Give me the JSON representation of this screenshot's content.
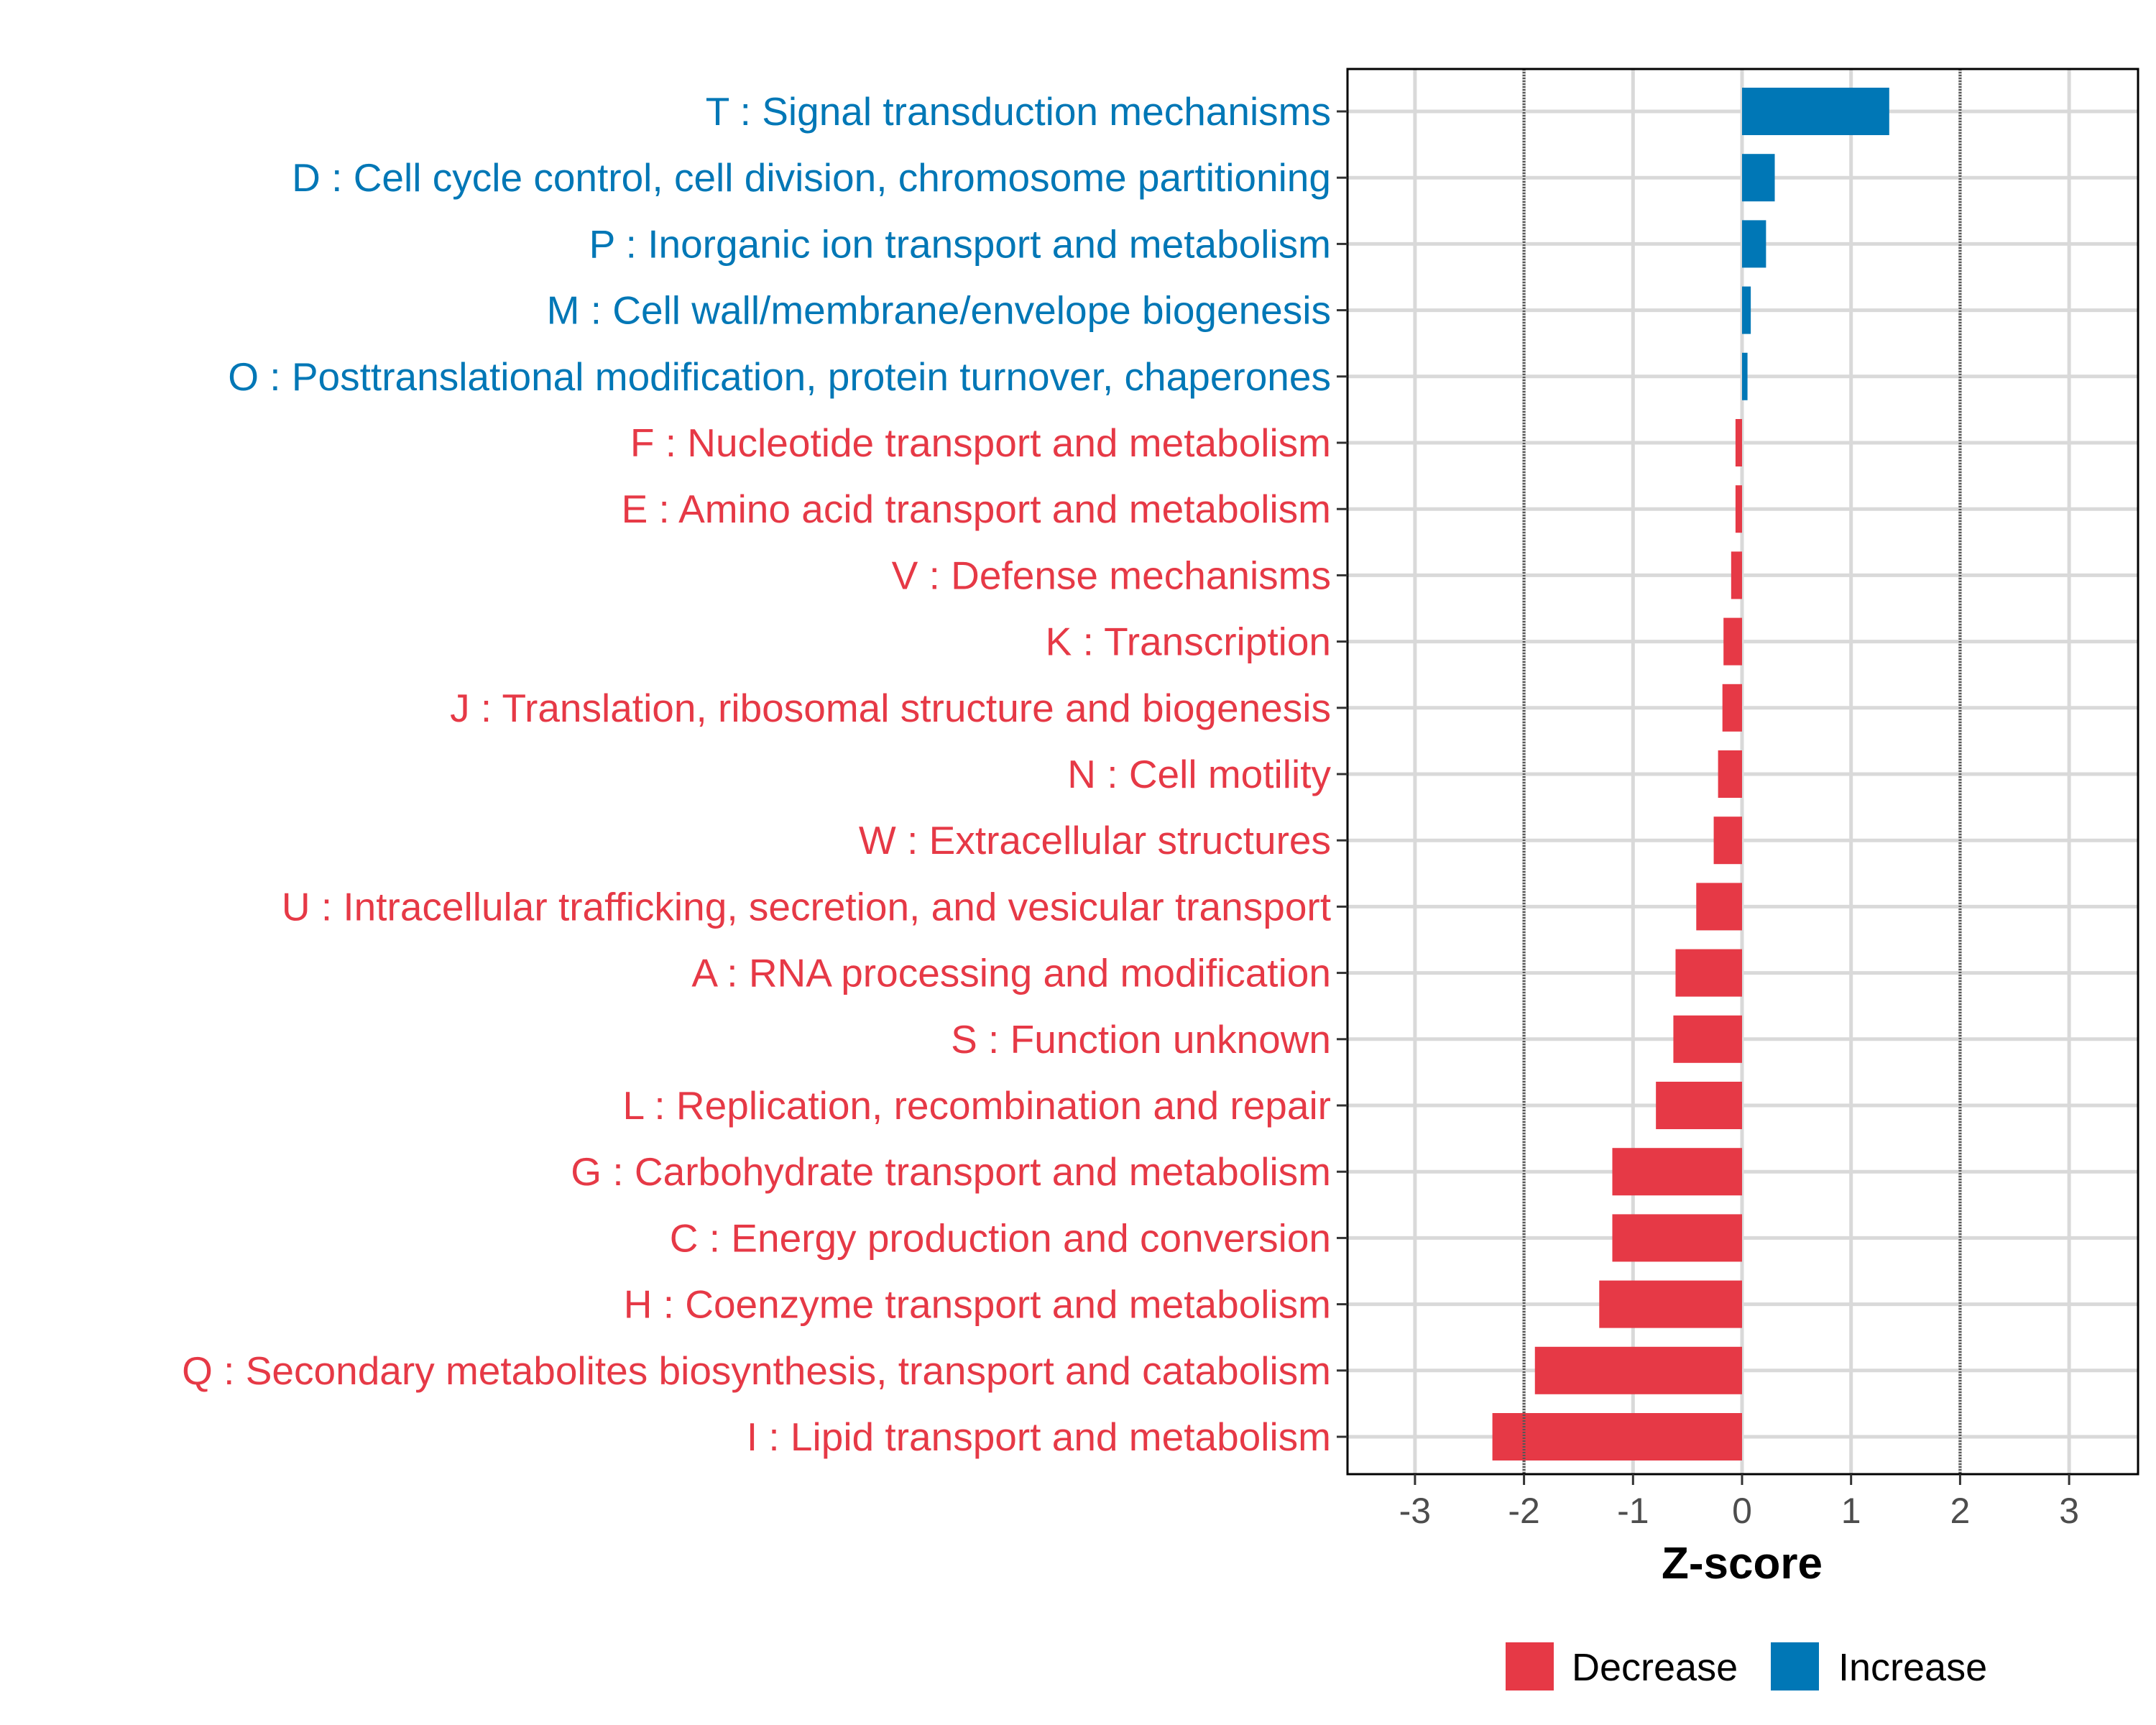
{
  "colors": {
    "decrease": "#E63946",
    "increase": "#0077B6",
    "grid": "#D9D9D9",
    "threshold": "#555555"
  },
  "chart_data": {
    "type": "bar",
    "orientation": "horizontal",
    "title": "",
    "xlabel": "Z-score",
    "ylabel": "",
    "xlim": [
      -3.6,
      3.6
    ],
    "xticks": [
      -3,
      -2,
      -1,
      0,
      1,
      2,
      3
    ],
    "xtick_labels": [
      "-3",
      "-2",
      "-1",
      "0",
      "1",
      "2",
      "3"
    ],
    "threshold_lines": [
      -2,
      2
    ],
    "grid": true,
    "legend": {
      "placement": "bottom",
      "entries": [
        {
          "label": "Decrease",
          "key": "decrease"
        },
        {
          "label": "Increase",
          "key": "increase"
        }
      ]
    },
    "categories": [
      "T : Signal transduction mechanisms",
      "D : Cell cycle control, cell division, chromosome partitioning",
      "P : Inorganic ion transport and metabolism",
      "M : Cell wall/membrane/envelope biogenesis",
      "O : Posttranslational modification, protein turnover, chaperones",
      "F : Nucleotide transport and metabolism",
      "E : Amino acid transport and metabolism",
      "V : Defense mechanisms",
      "K : Transcription",
      "J : Translation, ribosomal structure and biogenesis",
      "N : Cell motility",
      "W : Extracellular structures",
      "U : Intracellular trafficking, secretion, and vesicular transport",
      "A : RNA processing and modification",
      "S : Function unknown",
      "L : Replication, recombination and repair",
      "G : Carbohydrate transport and metabolism",
      "C : Energy production and conversion",
      "H : Coenzyme transport and metabolism",
      "Q : Secondary metabolites biosynthesis, transport and catabolism",
      "I : Lipid transport and metabolism"
    ],
    "values": [
      1.35,
      0.3,
      0.22,
      0.08,
      0.05,
      -0.06,
      -0.06,
      -0.1,
      -0.17,
      -0.18,
      -0.22,
      -0.26,
      -0.42,
      -0.61,
      -0.63,
      -0.79,
      -1.19,
      -1.19,
      -1.31,
      -1.9,
      -2.29
    ]
  }
}
